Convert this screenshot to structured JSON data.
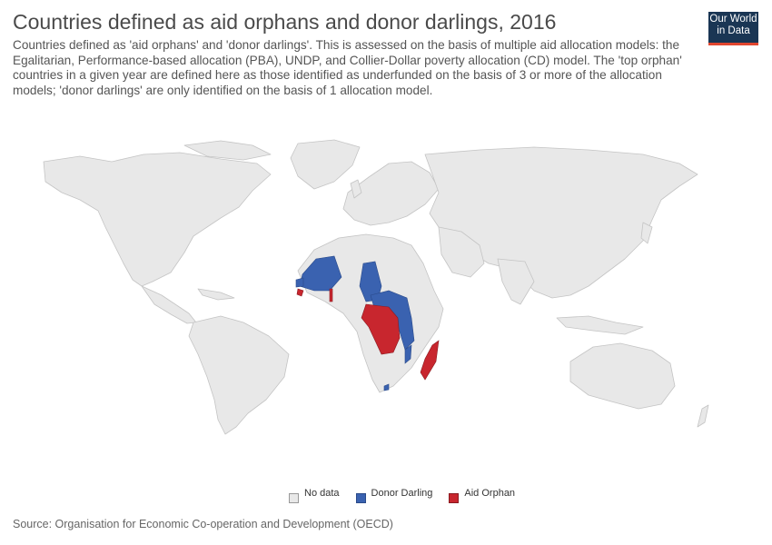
{
  "title": "Countries defined as aid orphans and donor darlings, 2016",
  "subtitle": "Countries defined as 'aid orphans' and 'donor darlings'. This is assessed on the basis of multiple aid allocation models: the Egalitarian, Performance-based allocation (PBA), UNDP, and Collier-Dollar poverty allocation (CD) model. The 'top orphan' countries in a given year are defined here as those identified as underfunded on the basis of 3 or more of the allocation models; 'donor darlings' are only identified on the basis of 1 allocation model.",
  "logo": {
    "line1": "Our World",
    "line2": "in Data"
  },
  "legend": [
    {
      "label": "No data",
      "color": "#e8e8e8"
    },
    {
      "label": "Donor Darling",
      "color": "#3a62b0"
    },
    {
      "label": "Aid Orphan",
      "color": "#c8262e"
    }
  ],
  "source": "Source: Organisation for Economic Co-operation and Development (OECD)",
  "colors": {
    "land": "#e8e8e8",
    "border": "#c4c4c4",
    "donor_darling": "#3a62b0",
    "aid_orphan": "#c8262e",
    "logo_bg": "#1a3654",
    "logo_bar": "#e1462f"
  }
}
